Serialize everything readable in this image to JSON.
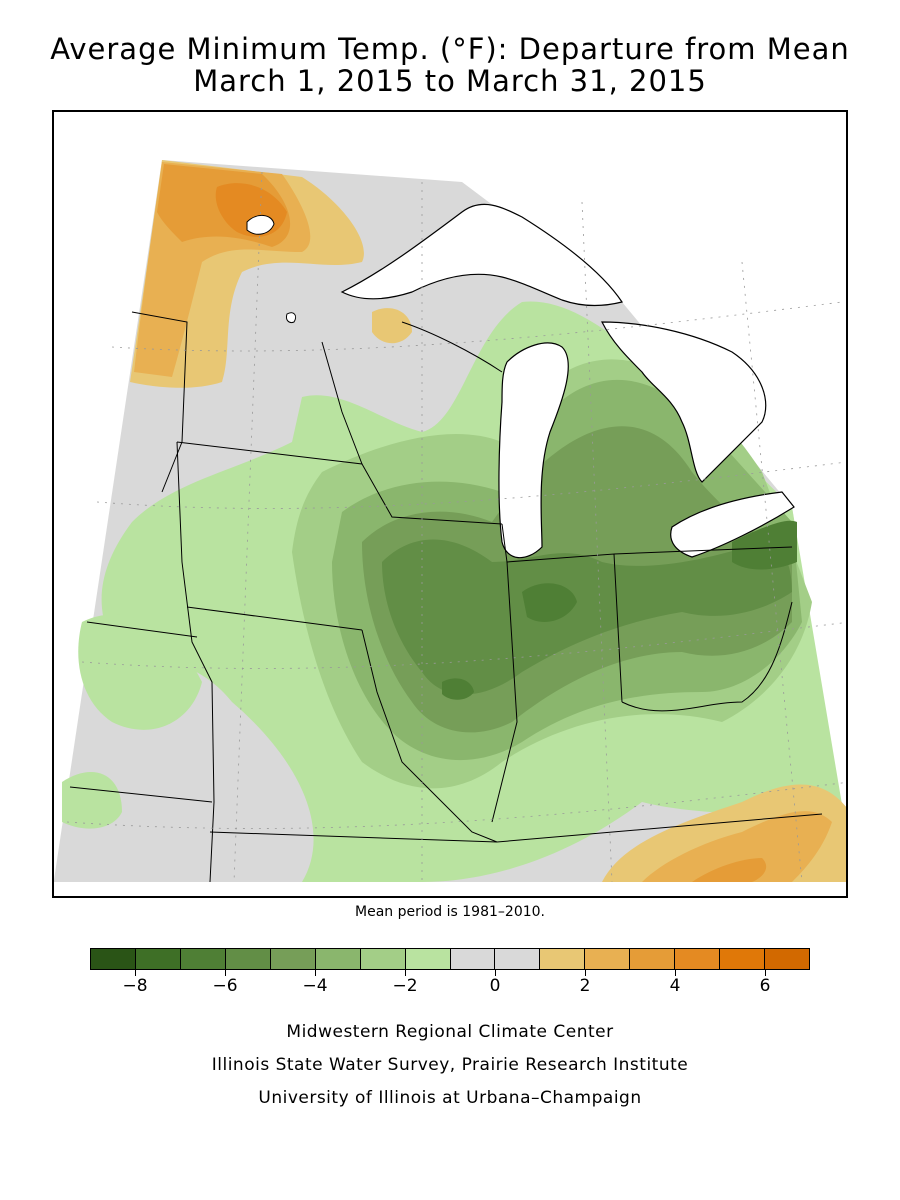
{
  "title": {
    "line1": "Average Minimum Temp. (°F): Departure from Mean",
    "line2": "March 1, 2015 to March 31, 2015"
  },
  "note": "Mean period is 1981–2010.",
  "legend": {
    "colors": [
      "#2a5416",
      "#3e6f26",
      "#4f7f35",
      "#628e46",
      "#769e58",
      "#8ab66d",
      "#a3ce87",
      "#b9e3a0",
      "#d9d9d9",
      "#d9d9d9",
      "#e8c774",
      "#e8b052",
      "#e59c37",
      "#e48a22",
      "#e07808",
      "#d26900"
    ],
    "tick_labels": [
      "−8",
      "−6",
      "−4",
      "−2",
      "0",
      "2",
      "4",
      "6"
    ]
  },
  "credits": {
    "line1": "Midwestern Regional Climate Center",
    "line2": "Illinois State Water Survey, Prairie Research Institute",
    "line3": "University of Illinois at Urbana–Champaign"
  },
  "colors": {
    "lake": "#ffffff",
    "background": "#d9d9d9",
    "border": "#000000"
  }
}
